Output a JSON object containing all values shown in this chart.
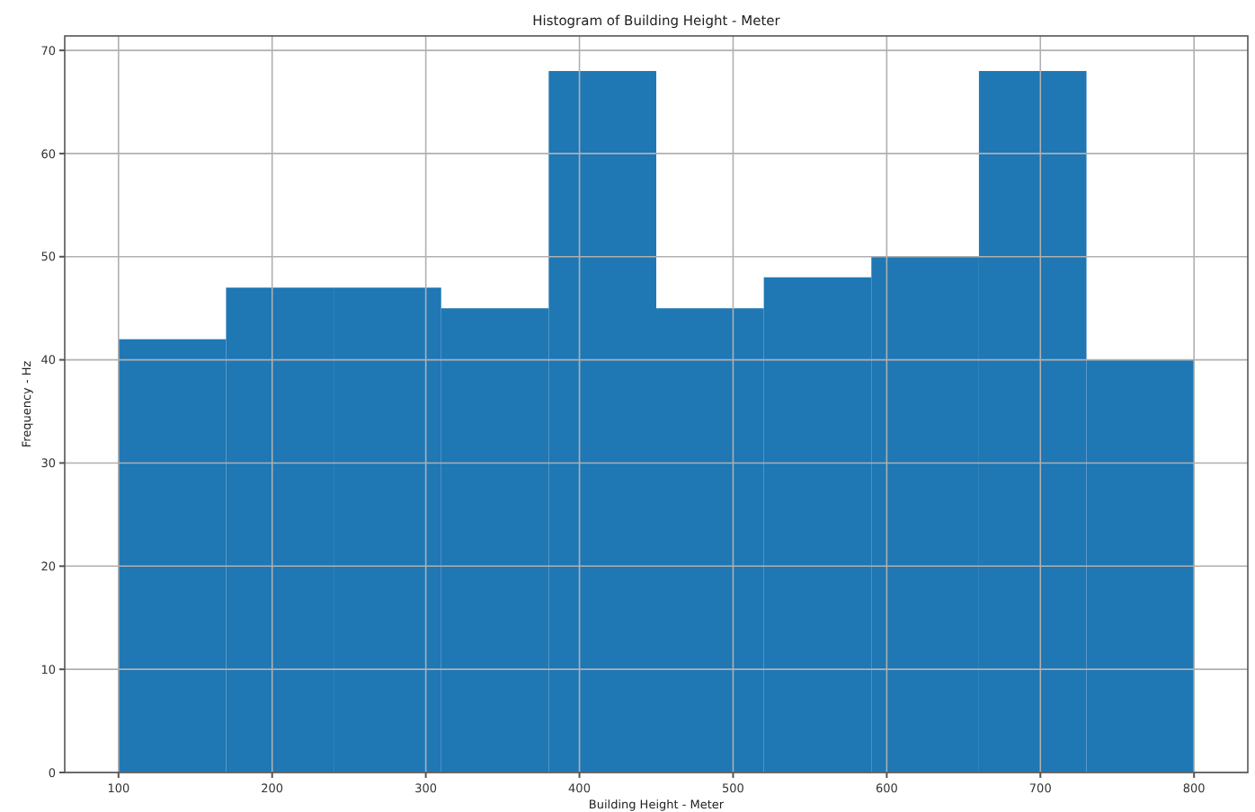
{
  "chart_data": {
    "type": "histogram",
    "title": "Histogram of Building Height  - Meter",
    "xlabel": "Building Height  - Meter",
    "ylabel": "Frequency - Hz",
    "bins": [
      100,
      170,
      240,
      310,
      380,
      450,
      520,
      590,
      660,
      730,
      800
    ],
    "values": [
      42,
      47,
      47,
      45,
      68,
      45,
      48,
      50,
      68,
      40
    ],
    "color": "#1f77b4",
    "xlim": [
      65,
      835
    ],
    "xticks": [
      100,
      200,
      300,
      400,
      500,
      600,
      700,
      800
    ],
    "ylim": [
      0,
      71.4
    ],
    "yticks": [
      0,
      10,
      20,
      30,
      40,
      50,
      60,
      70
    ],
    "grid": true
  }
}
